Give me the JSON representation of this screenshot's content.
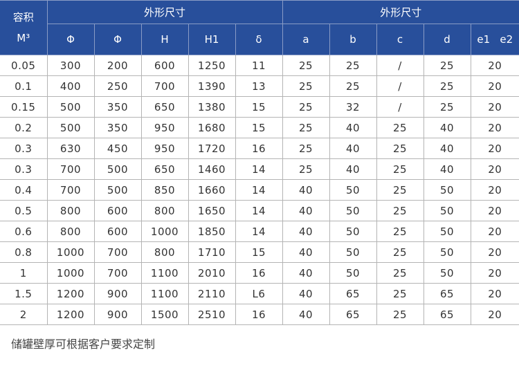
{
  "colors": {
    "header_bg": "#284f9b",
    "header_text": "#ffffff",
    "grid": "#b4b4b4"
  },
  "header": {
    "volume_label": "容积",
    "volume_unit": "M³",
    "group1": "外形尺寸",
    "group2": "外形尺寸",
    "columns": [
      "Φ",
      "Φ",
      "H",
      "H1",
      "δ",
      "a",
      "b",
      "c",
      "d",
      "e1   e2"
    ]
  },
  "rows": [
    [
      "0.05",
      "300",
      "200",
      "600",
      "1250",
      "11",
      "25",
      "25",
      "/",
      "25",
      "20"
    ],
    [
      "0.1",
      "400",
      "250",
      "700",
      "1390",
      "13",
      "25",
      "25",
      "/",
      "25",
      "20"
    ],
    [
      "0.15",
      "500",
      "350",
      "650",
      "1380",
      "15",
      "25",
      "32",
      "/",
      "25",
      "20"
    ],
    [
      "0.2",
      "500",
      "350",
      "950",
      "1680",
      "15",
      "25",
      "40",
      "25",
      "40",
      "20"
    ],
    [
      "0.3",
      "630",
      "450",
      "950",
      "1720",
      "16",
      "25",
      "40",
      "25",
      "40",
      "20"
    ],
    [
      "0.3",
      "700",
      "500",
      "650",
      "1460",
      "14",
      "25",
      "40",
      "25",
      "40",
      "20"
    ],
    [
      "0.4",
      "700",
      "500",
      "850",
      "1660",
      "14",
      "40",
      "50",
      "25",
      "50",
      "20"
    ],
    [
      "0.5",
      "800",
      "600",
      "800",
      "1650",
      "14",
      "40",
      "50",
      "25",
      "50",
      "20"
    ],
    [
      "0.6",
      "800",
      "600",
      "1000",
      "1850",
      "14",
      "40",
      "50",
      "25",
      "50",
      "20"
    ],
    [
      "0.8",
      "1000",
      "700",
      "800",
      "1710",
      "15",
      "40",
      "50",
      "25",
      "50",
      "20"
    ],
    [
      "1",
      "1000",
      "700",
      "1100",
      "2010",
      "16",
      "40",
      "50",
      "25",
      "50",
      "20"
    ],
    [
      "1.5",
      "1200",
      "900",
      "1100",
      "2110",
      "L6",
      "40",
      "65",
      "25",
      "65",
      "20"
    ],
    [
      "2",
      "1200",
      "900",
      "1500",
      "2510",
      "16",
      "40",
      "65",
      "25",
      "65",
      "20"
    ]
  ],
  "note": "储罐壁厚可根据客户要求定制"
}
